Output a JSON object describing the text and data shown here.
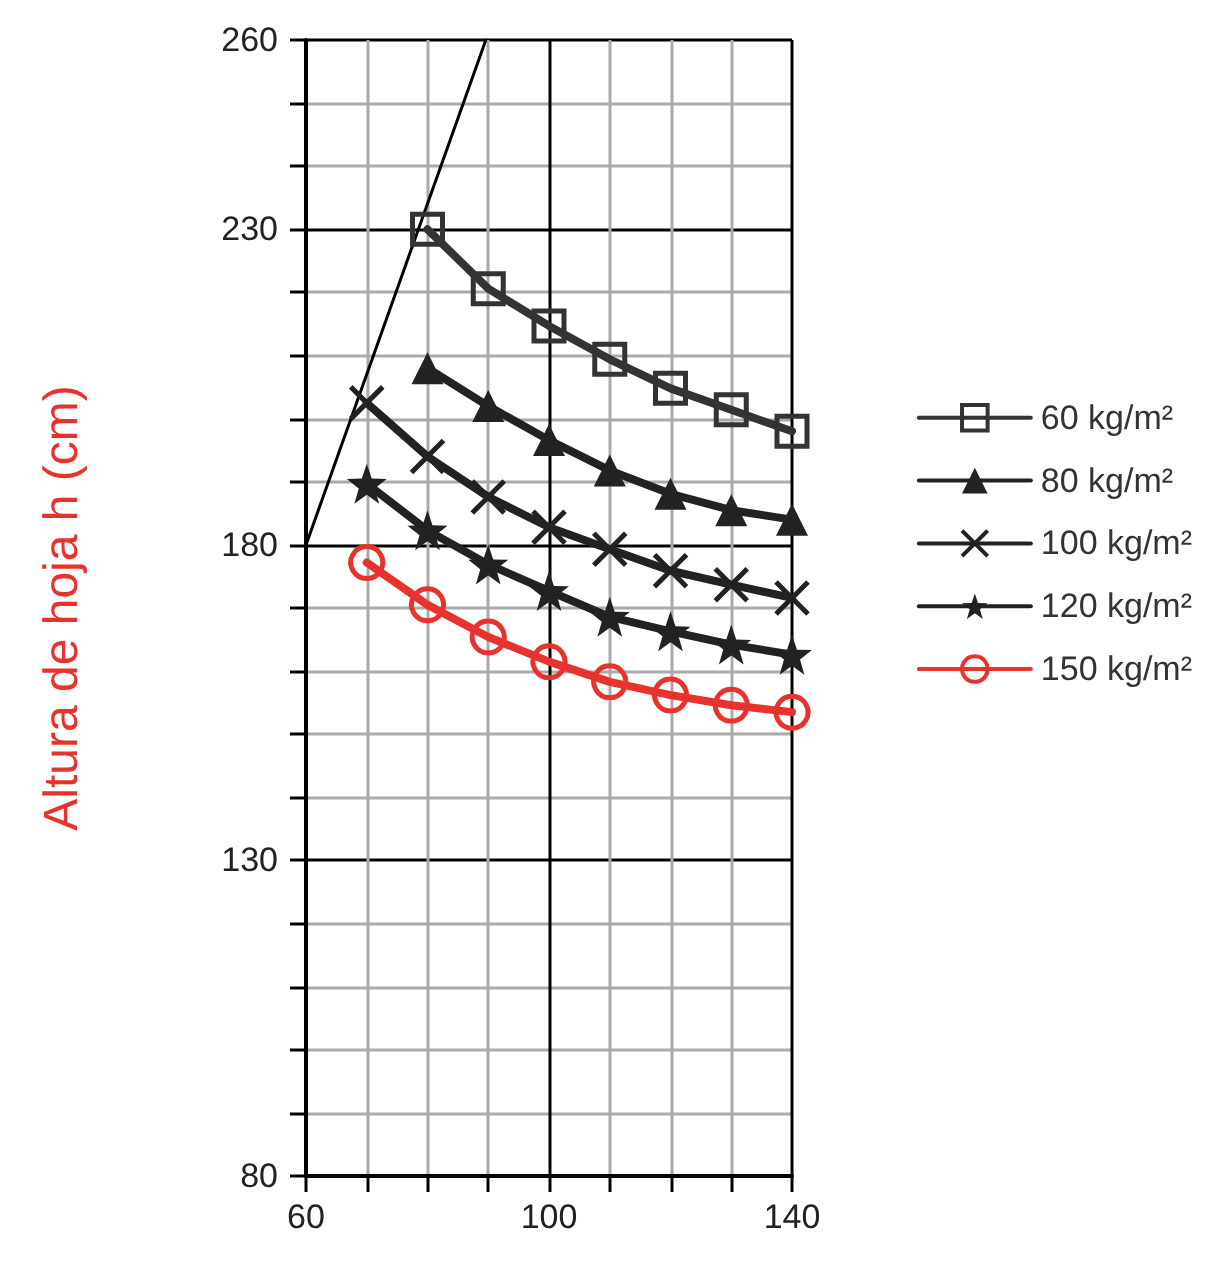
{
  "chart_data": {
    "type": "line",
    "ylabel": "Altura de hoja h (cm)",
    "xlim": [
      60,
      140
    ],
    "ylim": [
      80,
      260
    ],
    "xticks": [
      60,
      {
        "value": 70,
        "label": null
      },
      {
        "value": 80,
        "label": null
      },
      {
        "value": 90,
        "label": null
      },
      100,
      {
        "value": 110,
        "label": null
      },
      {
        "value": 120,
        "label": null
      },
      {
        "value": 130,
        "label": null
      },
      140
    ],
    "yticks": [
      80,
      {
        "value": 90,
        "label": null
      },
      {
        "value": 100,
        "label": null
      },
      {
        "value": 110,
        "label": null
      },
      {
        "value": 120,
        "label": null
      },
      130,
      {
        "value": 140,
        "label": null
      },
      {
        "value": 150,
        "label": null
      },
      {
        "value": 160,
        "label": null
      },
      {
        "value": 170,
        "label": null
      },
      180,
      {
        "value": 190,
        "label": null
      },
      {
        "value": 200,
        "label": null
      },
      {
        "value": 210,
        "label": null
      },
      {
        "value": 220,
        "label": null
      },
      230,
      {
        "value": 240,
        "label": null
      },
      {
        "value": 250,
        "label": null
      },
      260
    ],
    "grid": true,
    "legend": "right",
    "line_style": "solid",
    "series": [
      {
        "color": "#000000",
        "marker": "none",
        "x": [
          60,
          89.6
        ],
        "values": [
          180,
          260
        ]
      },
      {
        "name": "60 kg/m²",
        "color": "#333333",
        "marker": "square",
        "x": [
          80,
          90,
          100,
          110,
          120,
          130,
          140
        ],
        "values": [
          230,
          220.6,
          214.7,
          209.4,
          204.8,
          201.4,
          198
        ]
      },
      {
        "name": "80 kg/m²",
        "color": "#222222",
        "marker": "triangle",
        "x": [
          80,
          90,
          100,
          110,
          120,
          130,
          140
        ],
        "values": [
          208,
          202,
          196.6,
          191.8,
          188.1,
          185.5,
          184
        ]
      },
      {
        "name": "100 kg/m²",
        "color": "#222222",
        "marker": "cross",
        "x": [
          70,
          80,
          90,
          100,
          110,
          120,
          130,
          140
        ],
        "values": [
          202.5,
          194,
          187.6,
          182.8,
          179.3,
          175.9,
          173.7,
          171.6
        ]
      },
      {
        "name": "120 kg/m²",
        "color": "#222222",
        "marker": "star",
        "x": [
          70,
          80,
          90,
          100,
          110,
          120,
          130,
          140
        ],
        "values": [
          189.7,
          182.3,
          176.9,
          172.7,
          168.6,
          166.3,
          164.2,
          162.6
        ]
      },
      {
        "name": "150 kg/m²",
        "color": "#e8322d",
        "marker": "circle",
        "x": [
          70,
          80,
          90,
          100,
          110,
          120,
          130,
          140
        ],
        "values": [
          177.2,
          170.5,
          165.4,
          161.5,
          158.3,
          156.2,
          154.6,
          153.5
        ]
      }
    ]
  }
}
